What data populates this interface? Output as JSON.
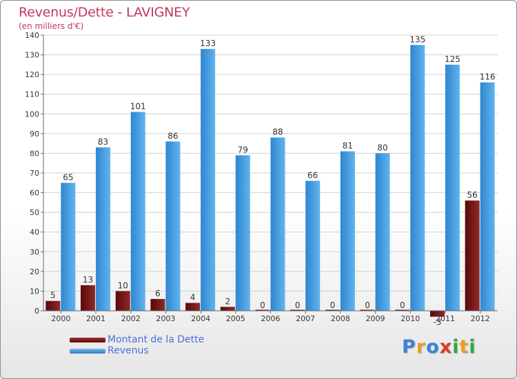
{
  "title": "Revenus/Dette - LAVIGNEY",
  "subtitle": "(en milliers d'€)",
  "brand": {
    "letters": [
      {
        "ch": "P",
        "color": "#3a84d8"
      },
      {
        "ch": "r",
        "color": "#e8a020"
      },
      {
        "ch": "o",
        "color": "#3a84d8"
      },
      {
        "ch": "x",
        "color": "#d83a2a"
      },
      {
        "ch": "i",
        "color": "#2aa848"
      },
      {
        "ch": "t",
        "color": "#e8a020"
      },
      {
        "ch": "i",
        "color": "#2aa848"
      }
    ]
  },
  "legend": [
    {
      "label": "Montant de la Dette",
      "color": "#7a1414"
    },
    {
      "label": "Revenus",
      "color": "#4a9de0"
    }
  ],
  "chart_data": {
    "type": "bar",
    "categories": [
      "2000",
      "2001",
      "2002",
      "2003",
      "2004",
      "2005",
      "2006",
      "2007",
      "2008",
      "2009",
      "2010",
      "2011",
      "2012"
    ],
    "series": [
      {
        "name": "Montant de la Dette",
        "color": "#7a1414",
        "values": [
          5,
          13,
          10,
          6,
          4,
          2,
          0,
          0,
          0,
          0,
          0,
          -3,
          56
        ]
      },
      {
        "name": "Revenus",
        "color": "#4a9de0",
        "values": [
          65,
          83,
          101,
          86,
          133,
          79,
          88,
          66,
          81,
          80,
          135,
          125,
          116
        ]
      }
    ],
    "yticks": [
      0,
      10,
      20,
      30,
      40,
      50,
      60,
      70,
      80,
      90,
      100,
      110,
      120,
      130,
      140
    ],
    "ylim": [
      0,
      140
    ],
    "grid": true,
    "legend_position": "bottom-left"
  }
}
